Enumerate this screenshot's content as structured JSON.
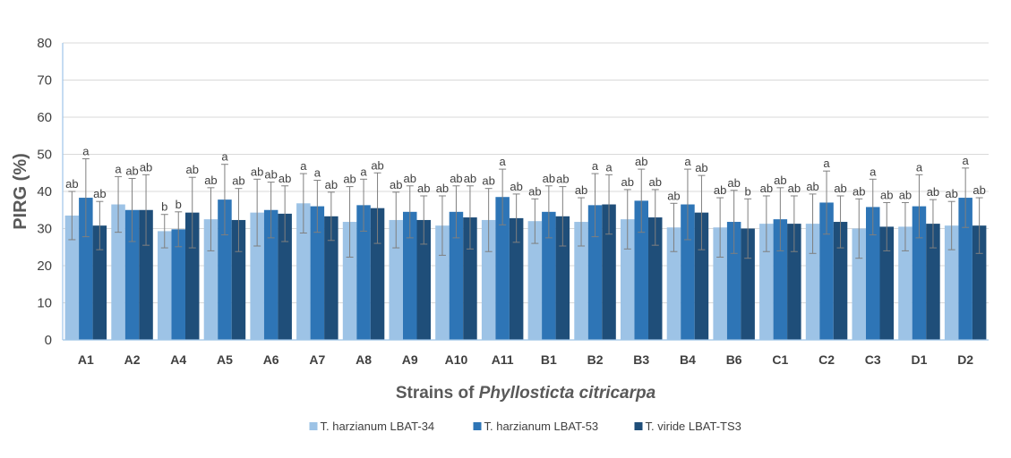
{
  "chart_data": {
    "type": "bar",
    "xlabel_prefix": "Strains of ",
    "xlabel_italic": "Phyllosticta citricarpa",
    "ylabel": "PIRG (%)",
    "ylim": [
      0,
      80
    ],
    "yticks": [
      0,
      10,
      20,
      30,
      40,
      50,
      60,
      70,
      80
    ],
    "grid": true,
    "legend_position": "bottom",
    "categories": [
      "A1",
      "A2",
      "A4",
      "A5",
      "A6",
      "A7",
      "A8",
      "A9",
      "A10",
      "A11",
      "B1",
      "B2",
      "B3",
      "B4",
      "B6",
      "C1",
      "C2",
      "C3",
      "D1",
      "D2"
    ],
    "series": [
      {
        "name": "T. harzianum LBAT-34",
        "color": "#9DC3E6",
        "values": [
          33.5,
          36.5,
          29.3,
          32.5,
          34.3,
          36.8,
          31.8,
          32.3,
          30.8,
          32.3,
          32.0,
          31.8,
          32.5,
          30.3,
          30.3,
          31.3,
          31.3,
          30.0,
          30.5,
          30.8
        ],
        "errors": [
          6.5,
          7.5,
          4.5,
          8.5,
          9.0,
          8.0,
          9.5,
          7.5,
          8.0,
          8.5,
          6.0,
          6.5,
          8.0,
          6.5,
          8.0,
          7.5,
          8.0,
          8.0,
          6.5,
          6.5
        ],
        "labels": [
          "ab",
          "a",
          "b",
          "ab",
          "ab",
          "a",
          "ab",
          "ab",
          "ab",
          "ab",
          "ab",
          "ab",
          "ab",
          "ab",
          "ab",
          "ab",
          "ab",
          "ab",
          "ab",
          "ab"
        ]
      },
      {
        "name": "T. harzianum LBAT-53",
        "color": "#2E75B6",
        "values": [
          38.3,
          35.0,
          29.8,
          37.8,
          35.0,
          36.0,
          36.3,
          34.5,
          34.5,
          38.5,
          34.5,
          36.3,
          37.5,
          36.5,
          31.8,
          32.5,
          37.0,
          35.8,
          36.0,
          38.3
        ],
        "errors": [
          10.5,
          8.5,
          4.7,
          9.5,
          7.5,
          7.0,
          7.0,
          7.0,
          7.0,
          7.5,
          7.0,
          8.5,
          8.5,
          9.5,
          8.5,
          8.5,
          8.5,
          7.5,
          8.5,
          8.0
        ],
        "labels": [
          "a",
          "ab",
          "b",
          "a",
          "ab",
          "a",
          "a",
          "ab",
          "ab",
          "a",
          "ab",
          "a",
          "ab",
          "a",
          "ab",
          "ab",
          "a",
          "a",
          "a",
          "a"
        ]
      },
      {
        "name": "T. viride LBAT-TS3",
        "color": "#1F4E79",
        "values": [
          30.8,
          35.0,
          34.3,
          32.3,
          34.0,
          33.3,
          35.5,
          32.3,
          33.0,
          32.8,
          33.3,
          36.5,
          33.0,
          34.3,
          30.0,
          31.3,
          31.8,
          30.5,
          31.3,
          30.8
        ],
        "errors": [
          6.5,
          9.5,
          9.5,
          8.5,
          7.5,
          6.5,
          9.5,
          6.5,
          8.5,
          6.5,
          8.0,
          8.0,
          7.5,
          10.0,
          8.0,
          7.5,
          7.0,
          6.5,
          6.5,
          7.5
        ],
        "labels": [
          "ab",
          "ab",
          "ab",
          "ab",
          "ab",
          "ab",
          "ab",
          "ab",
          "ab",
          "ab",
          "ab",
          "a",
          "ab",
          "ab",
          "b",
          "ab",
          "ab",
          "ab",
          "ab",
          "ab"
        ]
      }
    ]
  }
}
